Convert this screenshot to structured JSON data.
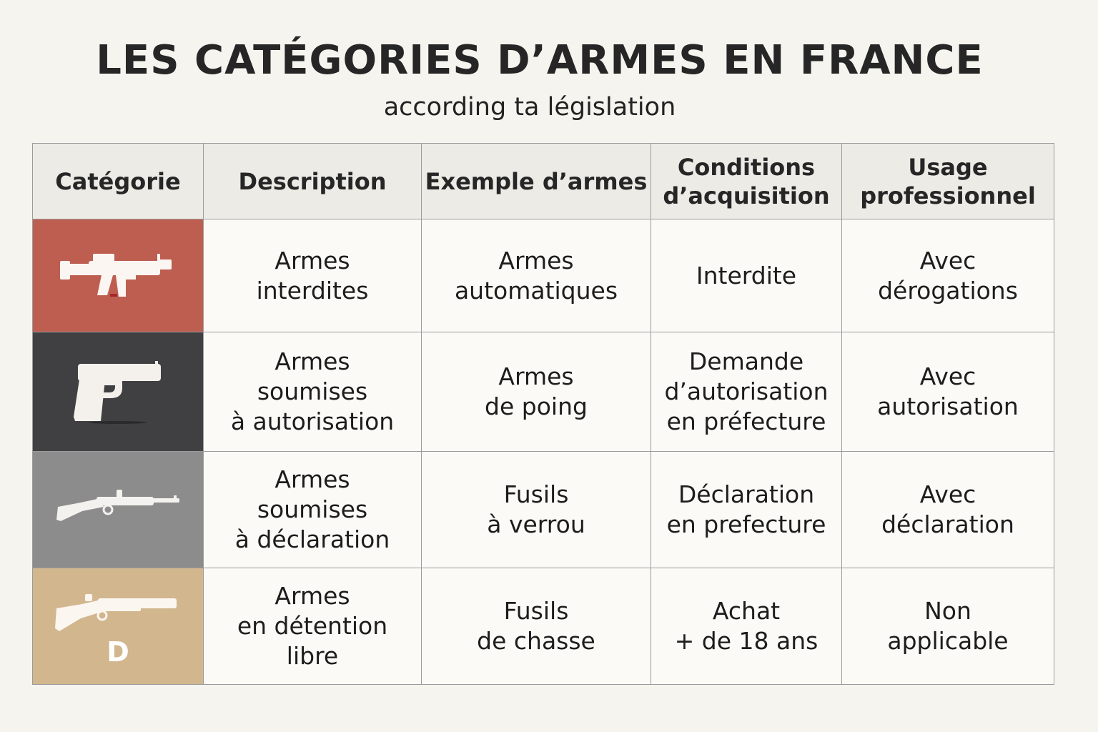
{
  "title": "LES CATÉGORIES D’ARMES EN FRANCE",
  "subtitle": "according ta législation",
  "colors": {
    "category_a": "#bd5e51",
    "category_b": "#404042",
    "category_c": "#8c8c8c",
    "category_d": "#d2b68e"
  },
  "table": {
    "headers": [
      "Catégorie",
      "Description",
      "Exemple d’armes",
      "Conditions\nd’acquisition",
      "Usage\nprofessionnel"
    ],
    "rows": [
      {
        "icon": "assault-rifle-icon",
        "letter": "",
        "description": "Armes\ninterdites",
        "example": "Armes\nautomatiques",
        "conditions": "Interdite",
        "usage": "Avec\ndérogations"
      },
      {
        "icon": "handgun-icon",
        "letter": "",
        "description": "Armes\nsoumises\nà autorisation",
        "example": "Armes\nde poing",
        "conditions": "Demande\nd’autorisation\nen préfecture",
        "usage": "Avec\nautorisation"
      },
      {
        "icon": "bolt-action-rifle-icon",
        "letter": "",
        "description": "Armes\nsoumises\nà déclaration",
        "example": "Fusils\nà verrou",
        "conditions": "Déclaration\nen prefecture",
        "usage": "Avec\ndéclaration"
      },
      {
        "icon": "hunting-shotgun-icon",
        "letter": "D",
        "description": "Armes\nen détention\nlibre",
        "example": "Fusils\nde chasse",
        "conditions": "Achat\n+ de 18 ans",
        "usage": "Non\napplicable"
      }
    ]
  }
}
